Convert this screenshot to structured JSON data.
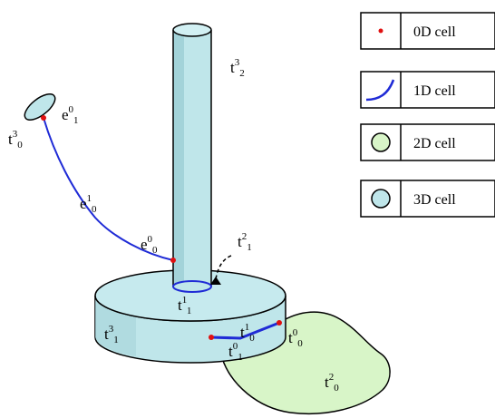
{
  "colors": {
    "cell_3d": "#bfe6ea",
    "cell_3d_dark": "#8fc3c9",
    "cell_2d": "#d8f5c8",
    "edge_1d": "#1f2bd6",
    "vertex_0d": "#e01010",
    "stroke": "#000000"
  },
  "legend": [
    {
      "symbol": "point",
      "label": "0D cell"
    },
    {
      "symbol": "curve",
      "label": "1D cell"
    },
    {
      "symbol": "circle-green",
      "label": "2D cell"
    },
    {
      "symbol": "circle-cyan",
      "label": "3D cell"
    }
  ],
  "labels": {
    "t3_2": {
      "base": "t",
      "sup": "3",
      "sub": "2"
    },
    "t3_0": {
      "base": "t",
      "sup": "3",
      "sub": "0"
    },
    "e0_1": {
      "base": "e",
      "sup": "0",
      "sub": "1"
    },
    "e1_0": {
      "base": "e",
      "sup": "1",
      "sub": "0"
    },
    "e0_0": {
      "base": "e",
      "sup": "0",
      "sub": "0"
    },
    "t2_1": {
      "base": "t",
      "sup": "2",
      "sub": "1"
    },
    "t1_1": {
      "base": "t",
      "sup": "1",
      "sub": "1"
    },
    "t3_1": {
      "base": "t",
      "sup": "3",
      "sub": "1"
    },
    "t1_0": {
      "base": "t",
      "sup": "1",
      "sub": "0"
    },
    "t0_0": {
      "base": "t",
      "sup": "0",
      "sub": "0"
    },
    "t0_1": {
      "base": "t",
      "sup": "0",
      "sub": "1"
    },
    "t2_0": {
      "base": "t",
      "sup": "2",
      "sub": "0"
    }
  }
}
